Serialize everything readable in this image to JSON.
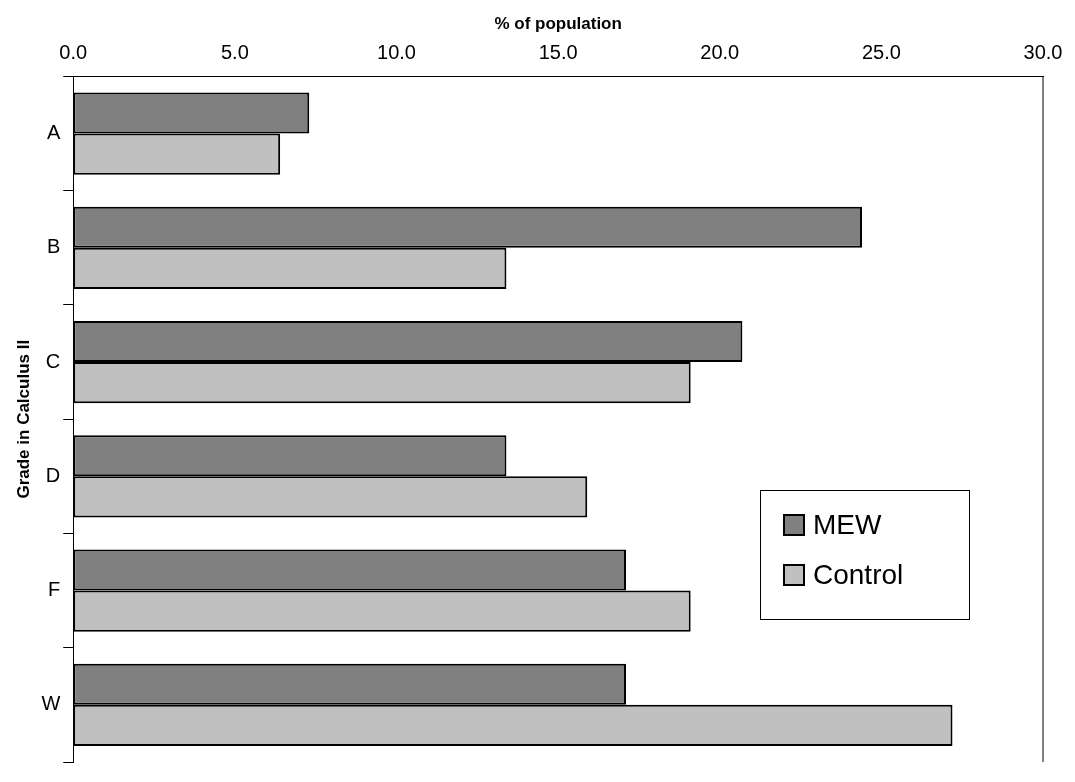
{
  "chart_data": {
    "type": "bar",
    "orientation": "horizontal",
    "xlabel": "% of population",
    "ylabel": "Grade in Calculus II",
    "categories": [
      "A",
      "B",
      "C",
      "D",
      "F",
      "W"
    ],
    "series": [
      {
        "name": "MEW",
        "color": "#808080",
        "values": [
          7.3,
          24.4,
          20.7,
          13.4,
          17.1,
          17.1
        ]
      },
      {
        "name": "Control",
        "color": "#c0c0c0",
        "values": [
          6.4,
          13.4,
          19.1,
          15.9,
          19.1,
          27.2
        ]
      }
    ],
    "xlim": [
      0,
      30
    ],
    "xticks": [
      {
        "value": 0,
        "label": "0.0"
      },
      {
        "value": 5,
        "label": "5.0"
      },
      {
        "value": 10,
        "label": "10.0"
      },
      {
        "value": 15,
        "label": "15.0"
      },
      {
        "value": 20,
        "label": "20.0"
      },
      {
        "value": 25,
        "label": "25.0"
      },
      {
        "value": 30,
        "label": "30.0"
      }
    ],
    "grid": false,
    "legend": "right"
  }
}
